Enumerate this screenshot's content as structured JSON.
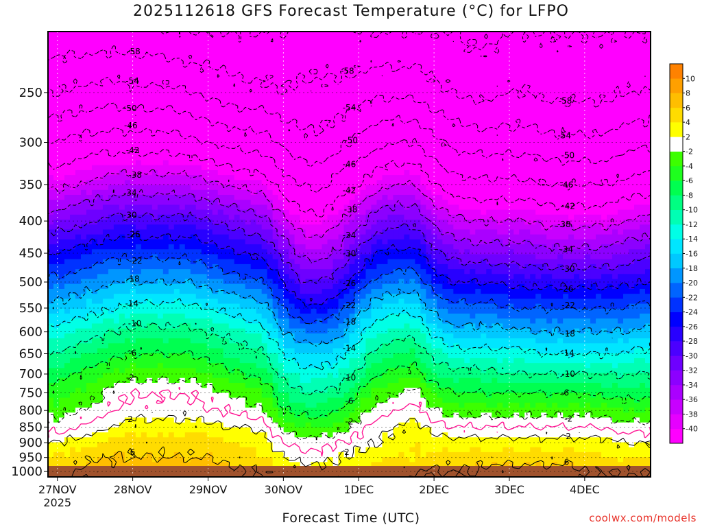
{
  "chart_data": {
    "type": "heatmap",
    "title": "2025112618 GFS Forecast Temperature (°C) for LFPO",
    "xlabel": "Forecast Time (UTC)",
    "ylabel": "",
    "x_ticks": [
      "27NOV",
      "28NOV",
      "29NOV",
      "30NOV",
      "1DEC",
      "2DEC",
      "3DEC",
      "4DEC"
    ],
    "x_tick_year": "2025",
    "y_ticks": [
      250,
      300,
      350,
      400,
      450,
      500,
      550,
      600,
      650,
      700,
      750,
      800,
      850,
      900,
      950,
      1000
    ],
    "ylim": [
      1020,
      200
    ],
    "y_scale": "log",
    "grid": true,
    "time_hours": [
      0,
      6,
      12,
      18,
      24,
      30,
      36,
      42,
      48,
      54,
      60,
      66,
      72,
      78,
      84,
      90,
      96,
      102,
      108,
      114,
      120,
      126,
      132,
      138,
      144,
      150,
      156,
      162,
      168,
      174,
      180,
      186
    ],
    "pressure_levels": [
      1000,
      950,
      900,
      850,
      800,
      750,
      700,
      650,
      600,
      550,
      500,
      450,
      400,
      350,
      300,
      250,
      200
    ],
    "temperature": [
      [
        5,
        6,
        7,
        7,
        8,
        8,
        8,
        8,
        8,
        7,
        6,
        6,
        4,
        3,
        3,
        3,
        4,
        5,
        5,
        6,
        6,
        6,
        6,
        7,
        7,
        7,
        7,
        7,
        6,
        6,
        6,
        6
      ],
      [
        4,
        5,
        6,
        6,
        6,
        6,
        6,
        6,
        6,
        5,
        5,
        4,
        2,
        1,
        1,
        2,
        3,
        4,
        4,
        4,
        5,
        5,
        5,
        5,
        5,
        5,
        5,
        5,
        5,
        4,
        4,
        4
      ],
      [
        2,
        3,
        4,
        5,
        5,
        5,
        5,
        5,
        5,
        4,
        4,
        3,
        0,
        -1,
        -1,
        0,
        1,
        2,
        3,
        4,
        3,
        3,
        3,
        3,
        3,
        3,
        3,
        3,
        3,
        3,
        2,
        2
      ],
      [
        -1,
        0,
        1,
        2,
        3,
        3,
        3,
        3,
        3,
        2,
        2,
        1,
        -3,
        -4,
        -4,
        -3,
        -1,
        1,
        2,
        3,
        1,
        0,
        0,
        0,
        0,
        0,
        0,
        0,
        0,
        0,
        -1,
        -1
      ],
      [
        -3,
        -2,
        -1,
        0,
        1,
        1,
        1,
        1,
        0,
        0,
        -1,
        -2,
        -6,
        -7,
        -7,
        -6,
        -3,
        -1,
        0,
        1,
        -2,
        -3,
        -3,
        -3,
        -3,
        -3,
        -3,
        -3,
        -3,
        -3,
        -4,
        -4
      ],
      [
        -5,
        -4,
        -3,
        -1,
        0,
        0,
        0,
        0,
        -1,
        -2,
        -3,
        -4,
        -8,
        -10,
        -10,
        -9,
        -6,
        -3,
        -2,
        -1,
        -4,
        -6,
        -6,
        -6,
        -6,
        -6,
        -6,
        -6,
        -6,
        -7,
        -7,
        -7
      ],
      [
        -7,
        -6,
        -5,
        -4,
        -3,
        -3,
        -3,
        -3,
        -4,
        -5,
        -6,
        -7,
        -11,
        -13,
        -13,
        -12,
        -9,
        -6,
        -5,
        -5,
        -8,
        -9,
        -9,
        -9,
        -10,
        -10,
        -10,
        -10,
        -10,
        -10,
        -10,
        -10
      ],
      [
        -10,
        -9,
        -8,
        -7,
        -6,
        -6,
        -6,
        -6,
        -7,
        -8,
        -9,
        -10,
        -14,
        -16,
        -16,
        -15,
        -12,
        -9,
        -8,
        -8,
        -11,
        -13,
        -13,
        -13,
        -13,
        -13,
        -14,
        -14,
        -14,
        -14,
        -14,
        -13
      ],
      [
        -13,
        -12,
        -11,
        -10,
        -9,
        -9,
        -9,
        -9,
        -10,
        -11,
        -12,
        -13,
        -18,
        -20,
        -20,
        -19,
        -15,
        -12,
        -11,
        -11,
        -15,
        -17,
        -17,
        -17,
        -17,
        -18,
        -18,
        -18,
        -18,
        -18,
        -18,
        -17
      ],
      [
        -17,
        -16,
        -15,
        -14,
        -13,
        -13,
        -13,
        -13,
        -14,
        -15,
        -16,
        -17,
        -22,
        -25,
        -25,
        -23,
        -19,
        -16,
        -15,
        -15,
        -19,
        -21,
        -21,
        -21,
        -22,
        -22,
        -22,
        -22,
        -22,
        -22,
        -22,
        -21
      ],
      [
        -21,
        -20,
        -19,
        -18,
        -18,
        -18,
        -18,
        -18,
        -19,
        -20,
        -21,
        -22,
        -26,
        -30,
        -30,
        -28,
        -24,
        -21,
        -20,
        -20,
        -24,
        -26,
        -26,
        -26,
        -27,
        -27,
        -27,
        -27,
        -27,
        -27,
        -27,
        -26
      ],
      [
        -26,
        -25,
        -24,
        -23,
        -23,
        -23,
        -23,
        -23,
        -24,
        -25,
        -26,
        -27,
        -31,
        -35,
        -35,
        -33,
        -29,
        -26,
        -25,
        -25,
        -29,
        -31,
        -32,
        -32,
        -32,
        -32,
        -33,
        -33,
        -33,
        -33,
        -32,
        -31
      ],
      [
        -32,
        -31,
        -30,
        -29,
        -29,
        -29,
        -29,
        -29,
        -30,
        -31,
        -32,
        -33,
        -37,
        -40,
        -41,
        -38,
        -35,
        -32,
        -31,
        -31,
        -35,
        -37,
        -38,
        -38,
        -38,
        -38,
        -39,
        -39,
        -39,
        -39,
        -38,
        -37
      ],
      [
        -39,
        -38,
        -37,
        -36,
        -36,
        -36,
        -36,
        -36,
        -37,
        -38,
        -39,
        -40,
        -44,
        -46,
        -47,
        -44,
        -42,
        -39,
        -38,
        -38,
        -42,
        -44,
        -45,
        -45,
        -45,
        -45,
        -46,
        -46,
        -46,
        -46,
        -45,
        -44
      ],
      [
        -46,
        -45,
        -44,
        -44,
        -44,
        -44,
        -44,
        -45,
        -46,
        -47,
        -48,
        -48,
        -51,
        -53,
        -53,
        -51,
        -49,
        -47,
        -46,
        -46,
        -49,
        -51,
        -52,
        -52,
        -52,
        -52,
        -53,
        -53,
        -53,
        -53,
        -52,
        -51
      ],
      [
        -54,
        -53,
        -53,
        -52,
        -53,
        -53,
        -53,
        -54,
        -55,
        -56,
        -57,
        -57,
        -58,
        -57,
        -57,
        -57,
        -56,
        -55,
        -55,
        -55,
        -57,
        -58,
        -59,
        -59,
        -58,
        -58,
        -59,
        -59,
        -59,
        -59,
        -58,
        -58
      ],
      [
        -61,
        -61,
        -61,
        -61,
        -61,
        -61,
        -62,
        -62,
        -62,
        -62,
        -62,
        -62,
        -62,
        -61,
        -61,
        -61,
        -62,
        -62,
        -62,
        -62,
        -62,
        -62,
        -63,
        -63,
        -62,
        -62,
        -62,
        -62,
        -62,
        -62,
        -62,
        -62
      ]
    ],
    "contour_levels": [
      -62,
      -58,
      -54,
      -50,
      -46,
      -42,
      -38,
      -34,
      -30,
      -26,
      -22,
      -18,
      -14,
      -10,
      -6,
      -2,
      2,
      6
    ],
    "freezing_line": 0,
    "colorbar": {
      "labels": [
        "-40",
        "-38",
        "-36",
        "-34",
        "-32",
        "-30",
        "-28",
        "-26",
        "-24",
        "-22",
        "-20",
        "-18",
        "-16",
        "-14",
        "-12",
        "-10",
        "-8",
        "-6",
        "-4",
        "-2",
        "2",
        "4",
        "6",
        "8",
        "10"
      ],
      "boundaries": [
        -40,
        -38,
        -36,
        -34,
        -32,
        -30,
        -28,
        -26,
        -24,
        -22,
        -20,
        -18,
        -16,
        -14,
        -12,
        -10,
        -8,
        -6,
        -4,
        -2,
        2,
        4,
        6,
        8,
        10
      ],
      "colors": [
        "#ff00ff",
        "#e600ff",
        "#c800ff",
        "#aa00ff",
        "#8c00ff",
        "#6e00ff",
        "#4b00ff",
        "#2800ff",
        "#0000ff",
        "#0032ff",
        "#0064ff",
        "#0096ff",
        "#00c8ff",
        "#00e6ff",
        "#00ffe6",
        "#00ffb4",
        "#00ff82",
        "#00ff50",
        "#1eff1e",
        "#3cff00",
        "#ffffff",
        "#ffff00",
        "#ffdc00",
        "#ffbe00",
        "#ffa000",
        "#ff8200"
      ]
    },
    "surface_color": "#a0522d",
    "contour_color": "#000000",
    "freezing_line_color": "#ff1493"
  },
  "credit": "coolwx.com/models"
}
